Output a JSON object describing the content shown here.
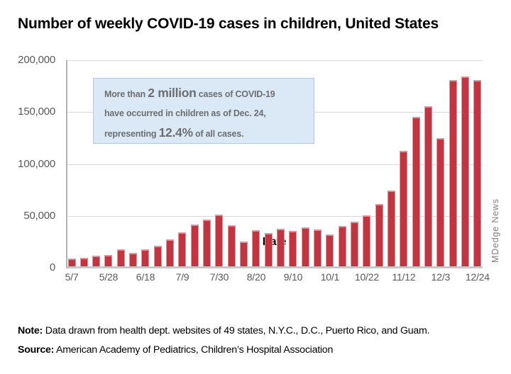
{
  "chart_data": {
    "type": "bar",
    "title": "Number of weekly COVID-19 cases in children, United States",
    "xlabel": "Date",
    "ylabel": "",
    "ylim": [
      0,
      200000
    ],
    "yticks": [
      0,
      50000,
      100000,
      150000,
      200000
    ],
    "ytick_labels": [
      "0",
      "50,000",
      "100,000",
      "150,000",
      "200,000"
    ],
    "grid": "horizontal",
    "legend": "none",
    "xtick_every": 3,
    "xticks_shown": [
      "5/7",
      "5/28",
      "6/18",
      "7/9",
      "7/30",
      "8/20",
      "9/10",
      "10/1",
      "10/22",
      "11/12",
      "12/3",
      "12/24"
    ],
    "categories": [
      "5/7",
      "5/14",
      "5/21",
      "5/28",
      "6/4",
      "6/11",
      "6/18",
      "6/25",
      "7/2",
      "7/9",
      "7/16",
      "7/23",
      "7/30",
      "8/6",
      "8/13",
      "8/20",
      "8/27",
      "9/3",
      "9/10",
      "9/17",
      "9/24",
      "10/1",
      "10/8",
      "10/15",
      "10/22",
      "10/29",
      "11/5",
      "11/12",
      "11/19",
      "11/26",
      "12/3",
      "12/10",
      "12/17",
      "12/24"
    ],
    "values": [
      9000,
      9400,
      11400,
      12300,
      17500,
      14000,
      18000,
      21400,
      27300,
      34100,
      41600,
      46400,
      51000,
      41200,
      25500,
      36200,
      33200,
      37300,
      35700,
      38700,
      37100,
      32400,
      40100,
      44200,
      50500,
      61700,
      74200,
      112900,
      145600,
      155600,
      124900,
      181100,
      184500,
      181100
    ]
  },
  "annotation": {
    "segments": [
      {
        "text": "More than ",
        "big": false
      },
      {
        "text": "2 million",
        "big": true
      },
      {
        "text": " cases of COVID-19",
        "big": false,
        "br_after": true
      },
      {
        "text": "have occurred in children as of Dec. 24,",
        "big": false,
        "br_after": true
      },
      {
        "text": "representing ",
        "big": false
      },
      {
        "text": "12.4%",
        "big": true
      },
      {
        "text": " of all cases.",
        "big": false
      }
    ]
  },
  "watermark": "MDedge News",
  "footer": {
    "note_label": "Note:",
    "note_text": " Data drawn from health dept. websites of 49 states, N.Y.C., D.C., Puerto Rico, and Guam.",
    "source_label": "Source:",
    "source_text": " American Academy of Pediatrics, Children’s Hospital Association"
  },
  "colors": {
    "bar": "#c23440",
    "bar_edge": "#d9959c",
    "grid": "#d9d9d9",
    "axis": "#b3b3b3",
    "tick_text": "#595959",
    "annotation_bg": "#dbe9f6",
    "annotation_border": "#b5c9dd",
    "annotation_text": "#6d6e71",
    "watermark_text": "#7f7f7f"
  }
}
